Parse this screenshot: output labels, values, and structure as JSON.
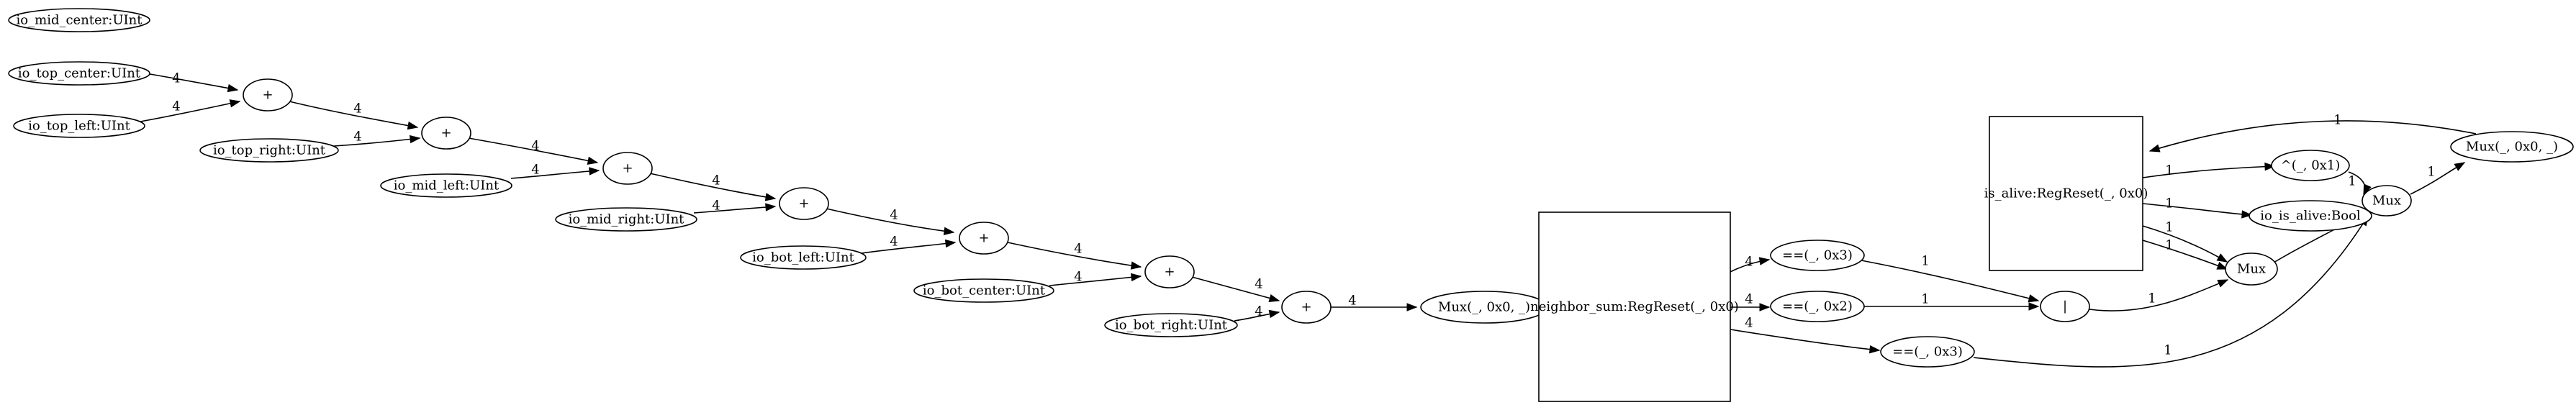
{
  "nodes": {
    "io_mid_center": "io_mid_center:UInt",
    "io_top_center": "io_top_center:UInt",
    "io_top_left": "io_top_left:UInt",
    "add1": "+",
    "io_top_right": "io_top_right:UInt",
    "add2": "+",
    "io_mid_left": "io_mid_left:UInt",
    "add3": "+",
    "io_mid_right": "io_mid_right:UInt",
    "add4": "+",
    "io_bot_left": "io_bot_left:UInt",
    "add5": "+",
    "io_bot_center": "io_bot_center:UInt",
    "add6": "+",
    "io_bot_right": "io_bot_right:UInt",
    "add7": "+",
    "mux_sum": "Mux(_, 0x0, _)",
    "neighbor_sum": "neighbor_sum:RegReset(_, 0x0)",
    "eq3_top": "==(_, 0x3)",
    "eq2": "==(_, 0x2)",
    "eq3_bot": "==(_, 0x3)",
    "or": "|",
    "is_alive": "is_alive:RegReset(_, 0x0)",
    "xor": "^(_, 0x1)",
    "io_is_alive": "io_is_alive:Bool",
    "mux_a": "Mux",
    "mux_b": "Mux",
    "mux_out": "Mux(_, 0x0, _)"
  },
  "edges": [
    {
      "from": "io_top_center",
      "to": "add1",
      "label": "4"
    },
    {
      "from": "io_top_left",
      "to": "add1",
      "label": "4"
    },
    {
      "from": "add1",
      "to": "add2",
      "label": "4"
    },
    {
      "from": "io_top_right",
      "to": "add2",
      "label": "4"
    },
    {
      "from": "add2",
      "to": "add3",
      "label": "4"
    },
    {
      "from": "io_mid_left",
      "to": "add3",
      "label": "4"
    },
    {
      "from": "add3",
      "to": "add4",
      "label": "4"
    },
    {
      "from": "io_mid_right",
      "to": "add4",
      "label": "4"
    },
    {
      "from": "add4",
      "to": "add5",
      "label": "4"
    },
    {
      "from": "io_bot_left",
      "to": "add5",
      "label": "4"
    },
    {
      "from": "add5",
      "to": "add6",
      "label": "4"
    },
    {
      "from": "io_bot_center",
      "to": "add6",
      "label": "4"
    },
    {
      "from": "add6",
      "to": "add7",
      "label": "4"
    },
    {
      "from": "io_bot_right",
      "to": "add7",
      "label": "4"
    },
    {
      "from": "add7",
      "to": "mux_sum",
      "label": "4"
    },
    {
      "from": "mux_sum",
      "to": "neighbor_sum",
      "label": "4"
    },
    {
      "from": "neighbor_sum",
      "to": "eq3_top",
      "label": "4"
    },
    {
      "from": "neighbor_sum",
      "to": "eq2",
      "label": "4"
    },
    {
      "from": "neighbor_sum",
      "to": "eq3_bot",
      "label": "4"
    },
    {
      "from": "eq3_top",
      "to": "or",
      "label": "1"
    },
    {
      "from": "eq2",
      "to": "or",
      "label": "1"
    },
    {
      "from": "or",
      "to": "mux_b",
      "label": "1"
    },
    {
      "from": "eq3_bot",
      "to": "mux_a",
      "label": "1"
    },
    {
      "from": "is_alive",
      "to": "xor",
      "label": "1"
    },
    {
      "from": "is_alive",
      "to": "io_is_alive",
      "label": "1"
    },
    {
      "from": "is_alive",
      "to": "mux_b",
      "label": "1"
    },
    {
      "from": "is_alive",
      "to": "mux_b",
      "label": "1"
    },
    {
      "from": "xor",
      "to": "mux_a",
      "label": "1"
    },
    {
      "from": "mux_b",
      "to": "mux_a",
      "label": "1"
    },
    {
      "from": "mux_a",
      "to": "mux_out",
      "label": "1"
    },
    {
      "from": "mux_out",
      "to": "is_alive",
      "label": "1"
    }
  ]
}
